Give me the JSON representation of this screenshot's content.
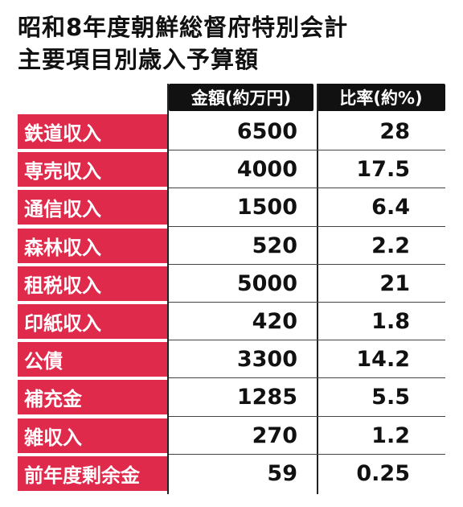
{
  "title": {
    "line1": "昭和8年度朝鮮総督府特別会計",
    "line2": "主要項目別歳入予算額"
  },
  "header": {
    "amount": "金額(約万円)",
    "ratio": "比率(約%)"
  },
  "rows": [
    {
      "name": "鉄道収入",
      "amount": "6500",
      "ratio": "28"
    },
    {
      "name": "専売収入",
      "amount": "4000",
      "ratio": "17.5"
    },
    {
      "name": "通信収入",
      "amount": "1500",
      "ratio": "6.4"
    },
    {
      "name": "森林収入",
      "amount": "520",
      "ratio": "2.2"
    },
    {
      "name": "租税収入",
      "amount": "5000",
      "ratio": "21"
    },
    {
      "name": "印紙収入",
      "amount": "420",
      "ratio": "1.8"
    },
    {
      "name": "公債",
      "amount": "3300",
      "ratio": "14.2"
    },
    {
      "name": "補充金",
      "amount": "1285",
      "ratio": "5.5"
    },
    {
      "name": "雑収入",
      "amount": "270",
      "ratio": "1.2"
    },
    {
      "name": "前年度剰余金",
      "amount": "59",
      "ratio": "0.25"
    }
  ],
  "colors": {
    "label_bg": "#e02a4c",
    "header_bg": "#111111"
  }
}
